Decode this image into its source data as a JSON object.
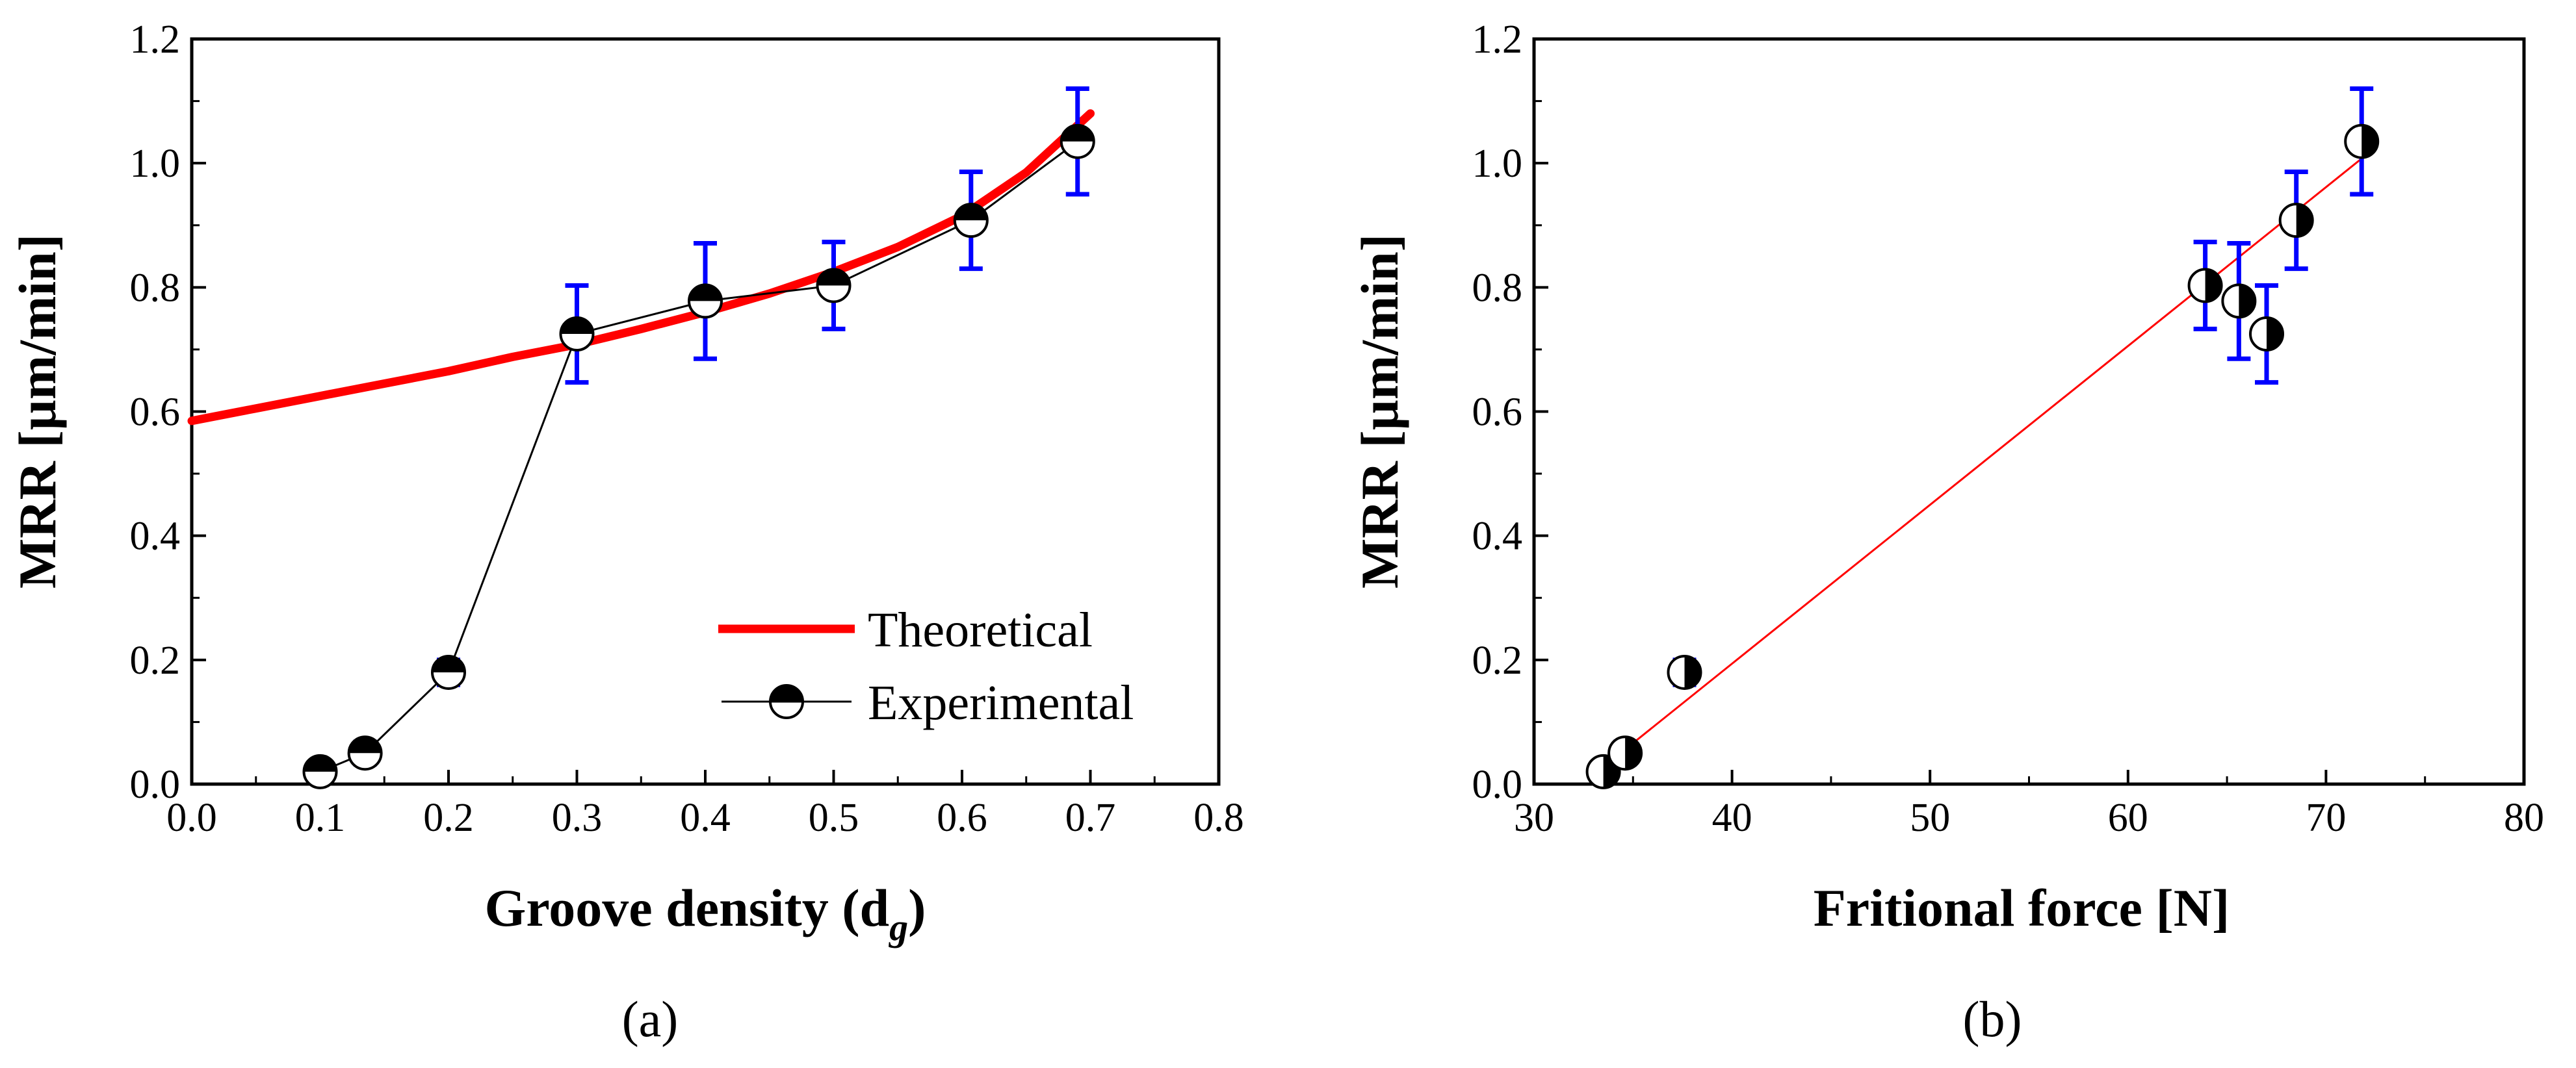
{
  "chart_data": [
    {
      "panel_label": "(a)",
      "type": "line",
      "xlabel": "Groove density (d",
      "xlabel_subscript": "g",
      "xlabel_close": ")",
      "ylabel": "MRR [µm/min]",
      "xlim": [
        0.0,
        0.8
      ],
      "ylim": [
        0.0,
        1.2
      ],
      "xticks": [
        "0.0",
        "0.1",
        "0.2",
        "0.3",
        "0.4",
        "0.5",
        "0.6",
        "0.7",
        "0.8"
      ],
      "yticks": [
        "0.0",
        "0.2",
        "0.4",
        "0.6",
        "0.8",
        "1.0",
        "1.2"
      ],
      "grid": false,
      "legend_position": "bottom-right",
      "series": [
        {
          "name": "Theoretical",
          "kind": "curve",
          "color": "#ff0000",
          "x": [
            0.0,
            0.05,
            0.1,
            0.15,
            0.2,
            0.25,
            0.3,
            0.35,
            0.4,
            0.45,
            0.5,
            0.55,
            0.6,
            0.65,
            0.7
          ],
          "y": [
            0.585,
            0.605,
            0.625,
            0.645,
            0.665,
            0.688,
            0.708,
            0.733,
            0.76,
            0.79,
            0.825,
            0.865,
            0.915,
            0.985,
            1.08
          ]
        },
        {
          "name": "Experimental",
          "kind": "markers-line",
          "color": "#000000",
          "error_color": "#0000ff",
          "x": [
            0.1,
            0.135,
            0.2,
            0.3,
            0.4,
            0.5,
            0.607,
            0.69
          ],
          "y": [
            0.02,
            0.05,
            0.18,
            0.725,
            0.778,
            0.803,
            0.908,
            1.035
          ],
          "err": [
            0.015,
            0.018,
            0.02,
            0.078,
            0.093,
            0.07,
            0.078,
            0.085
          ]
        }
      ]
    },
    {
      "panel_label": "(b)",
      "type": "scatter",
      "xlabel": "Fritional force [N]",
      "ylabel": "MRR [µm/min]",
      "xlim": [
        30,
        80
      ],
      "ylim": [
        0.0,
        1.2
      ],
      "xticks": [
        "30",
        "40",
        "50",
        "60",
        "70",
        "80"
      ],
      "yticks": [
        "0.0",
        "0.2",
        "0.4",
        "0.6",
        "0.8",
        "1.0",
        "1.2"
      ],
      "grid": false,
      "fit_line": {
        "color": "#ff0000",
        "x": [
          33.2,
          71.9
        ],
        "y": [
          0.02,
          1.01
        ]
      },
      "series": [
        {
          "color": "#000000",
          "error_color": "#0000ff",
          "x": [
            33.5,
            34.6,
            37.6,
            63.9,
            65.6,
            67.0,
            68.5,
            71.8
          ],
          "y": [
            0.02,
            0.05,
            0.18,
            0.803,
            0.778,
            0.725,
            0.908,
            1.035
          ],
          "err": [
            0.015,
            0.018,
            0.02,
            0.07,
            0.093,
            0.078,
            0.078,
            0.085
          ]
        }
      ]
    }
  ]
}
